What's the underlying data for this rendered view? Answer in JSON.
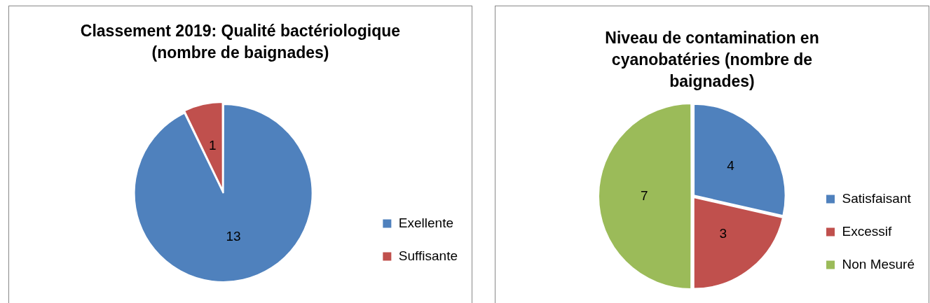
{
  "chart_data": [
    {
      "type": "pie",
      "title": "Classement 2019: Qualité bactériologique (nombre de baignades)",
      "categories": [
        "Exellente",
        "Suffisante"
      ],
      "values": [
        13,
        1
      ],
      "colors": [
        "#4f81bd",
        "#c0504d"
      ],
      "data_labels": true,
      "legend": "right"
    },
    {
      "type": "pie",
      "title": "Niveau de contamination en cyanobatéries (nombre de baignades)",
      "categories": [
        "Satisfaisant",
        "Excessif",
        "Non Mesuré"
      ],
      "values": [
        4,
        3,
        7
      ],
      "colors": [
        "#4f81bd",
        "#c0504d",
        "#9bbb59"
      ],
      "data_labels": true,
      "legend": "right"
    }
  ]
}
